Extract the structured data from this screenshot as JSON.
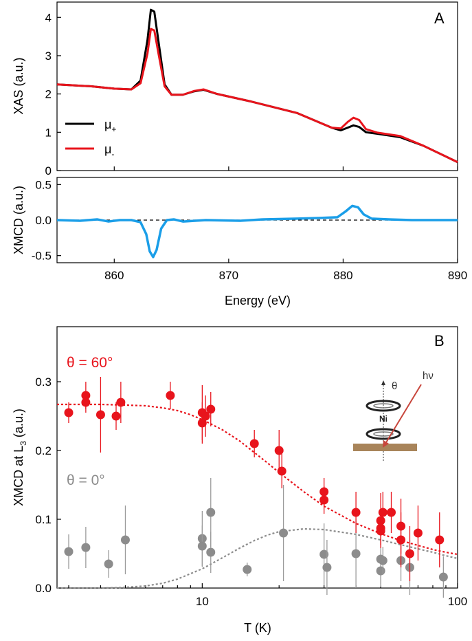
{
  "colors": {
    "mu_plus": "#000000",
    "mu_minus": "#e8141c",
    "xmcd": "#1a9ee8",
    "theta60": "#e8141c",
    "theta0": "#8c8c8c",
    "substrate": "#a8845a",
    "beam": "#c8463c"
  },
  "chart_data": [
    {
      "panel": "A",
      "type": "line",
      "ylabel": "XAS (a.u.)",
      "ylim": [
        0,
        4.4
      ],
      "yticks": [
        "0",
        "1",
        "2",
        "3",
        "4"
      ],
      "xlim": [
        855,
        890
      ],
      "legend": {
        "position": "bottom-left",
        "entries": [
          {
            "name": "μ",
            "sub": "+"
          },
          {
            "name": "μ",
            "sub": "-"
          }
        ]
      },
      "series": [
        {
          "name": "μ+",
          "x": [
            855,
            858,
            860,
            861.5,
            862.3,
            862.9,
            863.2,
            863.5,
            863.9,
            864.4,
            865,
            866,
            867,
            867.8,
            869,
            872,
            876,
            879,
            879.8,
            880.4,
            880.9,
            881.4,
            882,
            883,
            885,
            887,
            890
          ],
          "y": [
            2.25,
            2.2,
            2.14,
            2.12,
            2.35,
            3.4,
            4.2,
            4.15,
            3.3,
            2.25,
            1.98,
            1.98,
            2.07,
            2.11,
            2.0,
            1.8,
            1.5,
            1.12,
            1.05,
            1.12,
            1.18,
            1.14,
            1.0,
            0.96,
            0.87,
            0.65,
            0.22
          ]
        },
        {
          "name": "μ-",
          "x": [
            855,
            858,
            860,
            861.5,
            862.3,
            862.9,
            863.2,
            863.5,
            863.9,
            864.4,
            865,
            866,
            867,
            867.8,
            869,
            872,
            876,
            879,
            879.8,
            880.4,
            880.9,
            881.4,
            882,
            883,
            885,
            887,
            890
          ],
          "y": [
            2.25,
            2.2,
            2.14,
            2.12,
            2.28,
            3.05,
            3.7,
            3.66,
            3.0,
            2.2,
            1.98,
            1.98,
            2.08,
            2.12,
            2.0,
            1.8,
            1.5,
            1.12,
            1.1,
            1.27,
            1.38,
            1.32,
            1.08,
            0.99,
            0.9,
            0.65,
            0.22
          ]
        }
      ],
      "panel_label": "A"
    },
    {
      "panel": "A-xmcd",
      "type": "line",
      "xlabel": "Energy (eV)",
      "ylabel": "XMCD (a.u.)",
      "ylim": [
        -0.6,
        0.6
      ],
      "yticks": [
        "-0.5",
        "0.0",
        "0.5"
      ],
      "ytick_values": [
        -0.5,
        0.0,
        0.5
      ],
      "xlim": [
        855,
        890
      ],
      "xticks": [
        "860",
        "870",
        "880",
        "890"
      ],
      "xtick_values": [
        860,
        870,
        880,
        890
      ],
      "zero_line": "dashed",
      "series": [
        {
          "name": "XMCD",
          "x": [
            855,
            857,
            858.5,
            859.5,
            860.5,
            861.5,
            862.3,
            862.8,
            863.1,
            863.4,
            863.7,
            864.1,
            864.6,
            865.2,
            866,
            868,
            871,
            873,
            876,
            878,
            879.5,
            880.2,
            880.8,
            881.3,
            881.8,
            882.5,
            884,
            886,
            888,
            890
          ],
          "y": [
            0.0,
            -0.01,
            0.01,
            -0.02,
            0.0,
            0.0,
            -0.03,
            -0.2,
            -0.44,
            -0.52,
            -0.42,
            -0.12,
            0.0,
            0.01,
            -0.02,
            0.0,
            -0.01,
            0.01,
            0.02,
            0.03,
            0.04,
            0.12,
            0.2,
            0.18,
            0.08,
            0.02,
            0.01,
            0.0,
            0.0,
            0.0
          ]
        }
      ]
    },
    {
      "panel": "B",
      "type": "scatter",
      "xlabel": "T (K)",
      "ylabel": "XMCD at L",
      "ylabel_sub": "3",
      "ylabel_suffix": " (a.u.)",
      "xscale": "log",
      "xlim": [
        2.7,
        100
      ],
      "ylim": [
        0,
        0.38
      ],
      "xticks": [
        "10",
        "100"
      ],
      "xtick_values": [
        10,
        100
      ],
      "yticks": [
        "0.0",
        "0.1",
        "0.2",
        "0.3"
      ],
      "ytick_values": [
        0.0,
        0.1,
        0.2,
        0.3
      ],
      "panel_label": "B",
      "series": [
        {
          "name": "θ = 60°",
          "label_color": "theta60",
          "points": [
            [
              3,
              0.255,
              0.015
            ],
            [
              3.5,
              0.28,
              0.02
            ],
            [
              3.5,
              0.27,
              0.015
            ],
            [
              4,
              0.252,
              0.055
            ],
            [
              4.6,
              0.25,
              0.02
            ],
            [
              4.8,
              0.27,
              0.03
            ],
            [
              7.5,
              0.28,
              0.02
            ],
            [
              10,
              0.255,
              0.04
            ],
            [
              10,
              0.24,
              0.03
            ],
            [
              10.3,
              0.25,
              0.03
            ],
            [
              10.8,
              0.26,
              0.025
            ],
            [
              16,
              0.21,
              0.02
            ],
            [
              20,
              0.2,
              0.03
            ],
            [
              20.5,
              0.17,
              0.025
            ],
            [
              30,
              0.14,
              0.02
            ],
            [
              30,
              0.128,
              0.02
            ],
            [
              40,
              0.11,
              0.03
            ],
            [
              50,
              0.098,
              0.04
            ],
            [
              50,
              0.087,
              0.025
            ],
            [
              50,
              0.083,
              0.02
            ],
            [
              51,
              0.11,
              0.03
            ],
            [
              55,
              0.11,
              0.03
            ],
            [
              60,
              0.09,
              0.04
            ],
            [
              60,
              0.07,
              0.04
            ],
            [
              65,
              0.05,
              0.04
            ],
            [
              70,
              0.08,
              0.04
            ],
            [
              85,
              0.07,
              0.04
            ]
          ]
        },
        {
          "name": "θ = 0°",
          "label_color": "theta0",
          "points": [
            [
              3,
              0.053,
              0.025
            ],
            [
              3.5,
              0.059,
              0.03
            ],
            [
              4.3,
              0.035,
              0.02
            ],
            [
              5,
              0.07,
              0.05
            ],
            [
              10,
              0.072,
              0.04
            ],
            [
              10,
              0.061,
              0.03
            ],
            [
              10.8,
              0.11,
              0.05
            ],
            [
              10.8,
              0.052,
              0.03
            ],
            [
              15,
              0.027,
              0.01
            ],
            [
              20.8,
              0.08,
              0.07
            ],
            [
              30,
              0.049,
              0.045
            ],
            [
              30.8,
              0.03,
              0.04
            ],
            [
              40,
              0.05,
              0.05
            ],
            [
              50,
              0.042,
              0.04
            ],
            [
              50,
              0.025,
              0.02
            ],
            [
              51,
              0.04,
              0.02
            ],
            [
              60,
              0.04,
              0.03
            ],
            [
              65,
              0.03,
              0.04
            ],
            [
              88,
              0.016,
              0.03
            ]
          ]
        }
      ],
      "fits": [
        {
          "series": "θ = 60°",
          "style": "dotted",
          "x": [
            2.7,
            3,
            4,
            5,
            6,
            7,
            8,
            9,
            10,
            12,
            14,
            16,
            18,
            20,
            25,
            30,
            40,
            50,
            60,
            70,
            80,
            90,
            100
          ],
          "y": [
            0.267,
            0.267,
            0.267,
            0.266,
            0.265,
            0.262,
            0.258,
            0.252,
            0.245,
            0.23,
            0.214,
            0.197,
            0.182,
            0.168,
            0.14,
            0.119,
            0.094,
            0.079,
            0.069,
            0.062,
            0.056,
            0.052,
            0.049
          ]
        },
        {
          "series": "θ = 0°",
          "style": "dotted",
          "x": [
            2.7,
            4,
            5,
            6,
            7,
            8,
            10,
            12,
            14,
            16,
            18,
            20,
            25,
            30,
            40,
            50,
            60,
            70,
            80,
            90,
            100
          ],
          "y": [
            0.0,
            0.0,
            0.001,
            0.003,
            0.007,
            0.013,
            0.028,
            0.044,
            0.058,
            0.069,
            0.077,
            0.082,
            0.086,
            0.085,
            0.078,
            0.07,
            0.063,
            0.057,
            0.052,
            0.047,
            0.043
          ]
        }
      ],
      "inset": {
        "theta_label": "θ",
        "photon_label": "hν",
        "atom_label": "Ni"
      }
    }
  ]
}
